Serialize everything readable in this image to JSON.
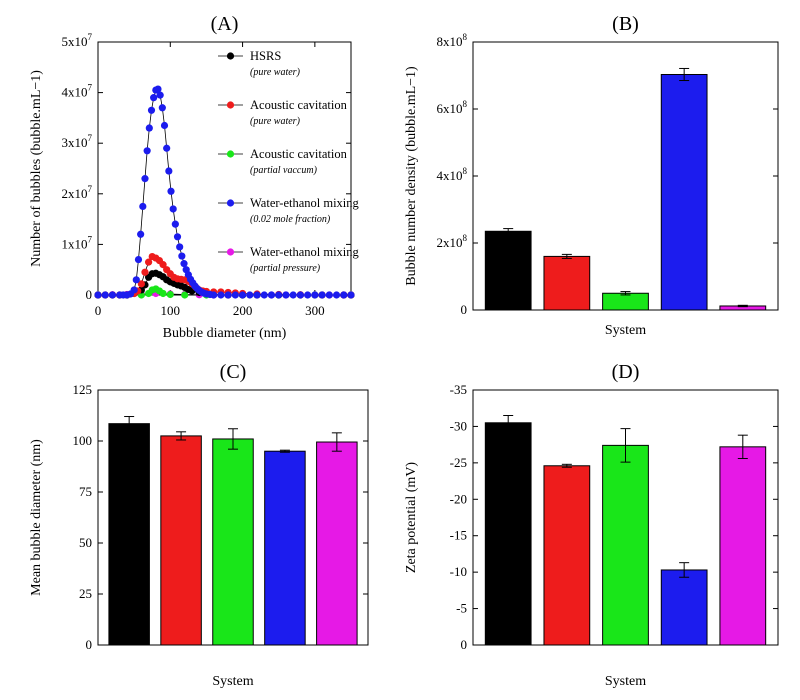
{
  "colors": {
    "black": "#000000",
    "red": "#ee1c1c",
    "green": "#19e619",
    "blue": "#1c1cee",
    "magenta": "#e619e6"
  },
  "chart_data": [
    {
      "panel": "(A)",
      "type": "line",
      "xlabel": "Bubble diameter (nm)",
      "ylabel": "Number of bubbles (bubble.mL−1)",
      "xlim": [
        0,
        350
      ],
      "ylim": [
        0,
        50000000
      ],
      "x_ticks": [
        0,
        100,
        200,
        300
      ],
      "y_ticks": [
        0,
        10000000,
        20000000,
        30000000,
        40000000,
        50000000
      ],
      "y_tick_labels": [
        "0",
        "1x10",
        "2x10",
        "3x10",
        "4x10",
        "5x10"
      ],
      "y_tick_exponent": "7",
      "legend_placement": "top-right",
      "series": [
        {
          "name": "HSRS",
          "note": "(pure water)",
          "color": "black",
          "x": [
            0,
            10,
            20,
            30,
            40,
            50,
            60,
            65,
            70,
            75,
            80,
            85,
            90,
            95,
            100,
            105,
            110,
            115,
            120,
            125,
            130,
            140,
            150,
            160,
            180,
            200,
            220,
            250,
            280,
            310,
            340,
            350
          ],
          "y": [
            0,
            0,
            0,
            0,
            0,
            300000,
            1000000,
            2000000,
            3500000,
            4200000,
            4300000,
            4000000,
            3600000,
            3000000,
            2600000,
            2300000,
            2000000,
            1800000,
            1500000,
            1100000,
            800000,
            500000,
            300000,
            100000,
            0,
            0,
            0,
            0,
            0,
            0,
            0,
            0
          ]
        },
        {
          "name": "Acoustic cavitation",
          "note": "(pure water)",
          "color": "red",
          "x": [
            0,
            10,
            20,
            30,
            40,
            50,
            55,
            60,
            65,
            70,
            75,
            80,
            85,
            90,
            95,
            100,
            105,
            110,
            115,
            120,
            125,
            130,
            135,
            140,
            145,
            150,
            160,
            170,
            180,
            190,
            200,
            220,
            250,
            280,
            310,
            340,
            350
          ],
          "y": [
            0,
            0,
            0,
            0,
            0,
            300000,
            800000,
            2200000,
            4500000,
            6500000,
            7600000,
            7300000,
            6800000,
            6000000,
            5000000,
            4200000,
            3500000,
            3200000,
            3100000,
            3000000,
            2700000,
            2200000,
            1600000,
            1000000,
            800000,
            700000,
            600000,
            600000,
            500000,
            400000,
            300000,
            200000,
            100000,
            50000,
            0,
            0,
            0
          ]
        },
        {
          "name": "Acoustic cavitation",
          "note": "(partial vaccum)",
          "color": "green",
          "x": [
            0,
            40,
            60,
            70,
            75,
            80,
            85,
            90,
            100,
            120,
            150,
            200,
            250,
            300,
            350
          ],
          "y": [
            0,
            0,
            0,
            300000,
            1000000,
            1200000,
            800000,
            300000,
            100000,
            0,
            0,
            0,
            0,
            0,
            0
          ]
        },
        {
          "name": "Water-ethanol mixing",
          "note": "(0.02 mole fraction)",
          "color": "blue",
          "x": [
            0,
            10,
            20,
            30,
            35,
            40,
            45,
            50,
            53,
            56,
            59,
            62,
            65,
            68,
            71,
            74,
            77,
            80,
            83,
            86,
            89,
            92,
            95,
            98,
            101,
            104,
            107,
            110,
            113,
            116,
            119,
            122,
            125,
            128,
            131,
            134,
            137,
            140,
            143,
            146,
            150,
            155,
            160,
            170,
            180,
            190,
            200,
            210,
            220,
            230,
            240,
            250,
            260,
            270,
            280,
            290,
            300,
            310,
            320,
            330,
            340,
            350
          ],
          "y": [
            0,
            0,
            0,
            0,
            0,
            0,
            200000,
            1000000,
            3000000,
            7000000,
            12000000,
            17500000,
            23000000,
            28500000,
            33000000,
            36500000,
            39000000,
            40500000,
            40700000,
            39500000,
            37000000,
            33500000,
            29000000,
            24500000,
            20500000,
            17000000,
            14000000,
            11500000,
            9500000,
            7700000,
            6200000,
            5000000,
            4000000,
            3100000,
            2400000,
            1800000,
            1300000,
            900000,
            600000,
            400000,
            200000,
            100000,
            0,
            0,
            0,
            0,
            0,
            0,
            0,
            0,
            0,
            0,
            0,
            0,
            0,
            0,
            0,
            0,
            0,
            0,
            0,
            0
          ]
        },
        {
          "name": "Water-ethanol mixing",
          "note": "(partial pressure)",
          "color": "magenta",
          "x": [
            0,
            20,
            40,
            60,
            80,
            100,
            120,
            140,
            160,
            180,
            200,
            220,
            240,
            260,
            280,
            300,
            320,
            340
          ],
          "y": [
            0,
            50000,
            100000,
            200000,
            300000,
            200000,
            100000,
            50000,
            0,
            0,
            0,
            0,
            0,
            0,
            0,
            0,
            0,
            0
          ]
        }
      ]
    },
    {
      "panel": "(B)",
      "type": "bar",
      "xlabel": "System",
      "ylabel": "Bubble number density (bubble.mL−1)",
      "ylim": [
        0,
        800000000
      ],
      "y_ticks": [
        0,
        200000000,
        400000000,
        600000000,
        800000000
      ],
      "y_tick_labels": [
        "0",
        "2x10",
        "4x10",
        "6x10",
        "8x10"
      ],
      "y_tick_exponent": "8",
      "colors": [
        "black",
        "red",
        "green",
        "blue",
        "magenta"
      ],
      "values": [
        235000000,
        160000000,
        50000000,
        703000000,
        12000000
      ],
      "errors": [
        8000000,
        6000000,
        5000000,
        18000000,
        2000000
      ]
    },
    {
      "panel": "(C)",
      "type": "bar",
      "xlabel": "System",
      "ylabel": "Mean bubble diameter (nm)",
      "ylim": [
        0,
        125
      ],
      "y_ticks": [
        0,
        25,
        50,
        75,
        100,
        125
      ],
      "y_tick_labels": [
        "0",
        "25",
        "50",
        "75",
        "100",
        "125"
      ],
      "colors": [
        "black",
        "red",
        "green",
        "blue",
        "magenta"
      ],
      "values": [
        108.5,
        102.5,
        101,
        95,
        99.5
      ],
      "errors": [
        3.5,
        2,
        5,
        0.5,
        4.5
      ]
    },
    {
      "panel": "(D)",
      "type": "bar",
      "xlabel": "System",
      "ylabel": "Zeta potential (mV)",
      "ylim": [
        0,
        -35
      ],
      "y_ticks": [
        0,
        -5,
        -10,
        -15,
        -20,
        -25,
        -30,
        -35
      ],
      "y_tick_labels": [
        "0",
        "-5",
        "-10",
        "-15",
        "-20",
        "-25",
        "-30",
        "-35"
      ],
      "colors": [
        "black",
        "red",
        "green",
        "blue",
        "magenta"
      ],
      "values": [
        -30.5,
        -24.6,
        -27.4,
        -10.3,
        -27.2
      ],
      "errors": [
        1,
        0.2,
        2.3,
        1,
        1.6
      ]
    }
  ]
}
